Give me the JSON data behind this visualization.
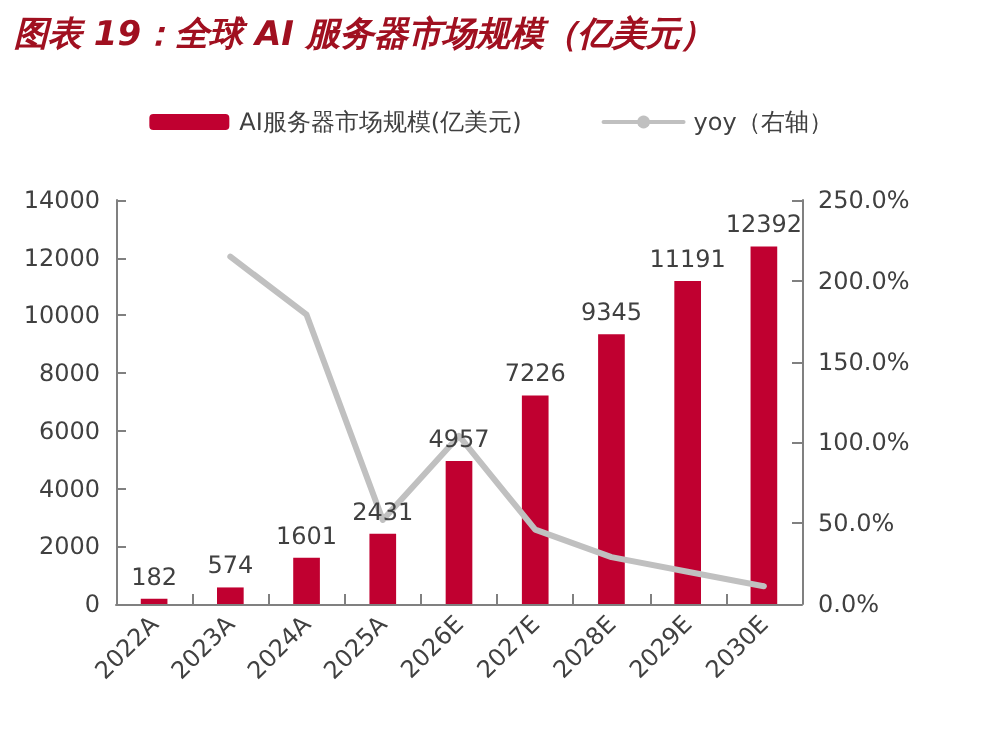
{
  "chart_data": {
    "type": "bar",
    "title": "图表 19：全球 AI 服务器市场规模（亿美元）",
    "categories": [
      "2022A",
      "2023A",
      "2024A",
      "2025A",
      "2026E",
      "2027E",
      "2028E",
      "2029E",
      "2030E"
    ],
    "series": [
      {
        "name": "AI服务器市场规模(亿美元)",
        "color": "#c00030",
        "values": [
          182,
          574,
          1601,
          2431,
          4957,
          7226,
          9345,
          11191,
          12392
        ],
        "value_labels": [
          "182",
          "574",
          "1601",
          "2431",
          "4957",
          "7226",
          "9345",
          "11191",
          "12392"
        ]
      },
      {
        "name": "yoy（右轴）",
        "type": "line",
        "axis": "y2",
        "color": "#c0c0c0",
        "values": [
          null,
          215,
          179,
          52,
          104,
          46,
          29,
          20,
          11
        ]
      }
    ],
    "ylim": [
      0,
      14000
    ],
    "yticks": [
      0,
      2000,
      4000,
      6000,
      8000,
      10000,
      12000,
      14000
    ],
    "y2lim": [
      0,
      250
    ],
    "y2ticks": [
      {
        "value": 0,
        "label": "0.0%"
      },
      {
        "value": 50,
        "label": "50.0%"
      },
      {
        "value": 100,
        "label": "100.0%"
      },
      {
        "value": 150,
        "label": "150.0%"
      },
      {
        "value": 200,
        "label": "200.0%"
      },
      {
        "value": 250,
        "label": "250.0%"
      }
    ],
    "legend": "top",
    "grid": false,
    "marker": "none",
    "line_style": "solid"
  }
}
